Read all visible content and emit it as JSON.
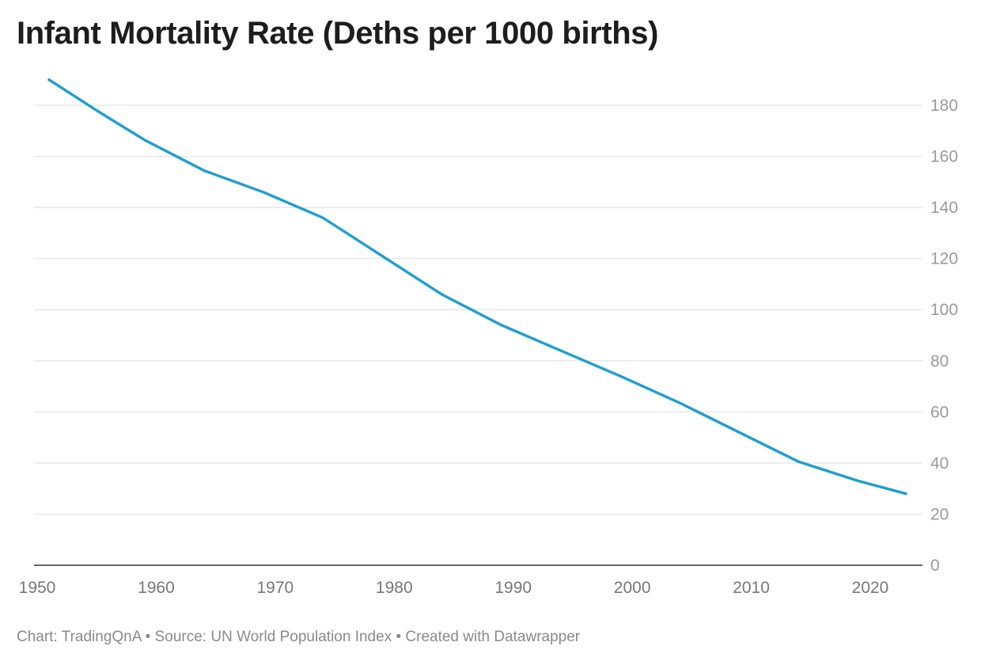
{
  "colors": {
    "line": "#1f9ecf",
    "grid": "#e2e2e2",
    "axis": "#333333",
    "tick_text": "#9a9a9a",
    "title_text": "#1d1d1d"
  },
  "footer": {
    "chart_credit": "Chart: TradingQnA",
    "separator_1": " • ",
    "source": "Source: UN World Population Index",
    "separator_2": " • ",
    "created_with": "Created with Datawrapper"
  },
  "chart_data": {
    "type": "line",
    "title": "Infant Mortality Rate (Deths per 1000 births)",
    "xlabel": "",
    "ylabel": "",
    "xlim": [
      1950,
      2023
    ],
    "ylim": [
      0,
      190
    ],
    "x_ticks": [
      1950,
      1960,
      1970,
      1980,
      1990,
      2000,
      2010,
      2020
    ],
    "y_ticks": [
      0,
      20,
      40,
      60,
      80,
      100,
      120,
      140,
      160,
      180
    ],
    "y_axis_position": "right",
    "grid": true,
    "series": [
      {
        "x": [
          1951,
          1955,
          1959,
          1964,
          1969,
          1974,
          1979,
          1984,
          1989,
          1994,
          1999,
          2004,
          2009,
          2014,
          2019,
          2023
        ],
        "y": [
          190,
          178,
          166.5,
          154.5,
          146,
          136,
          121,
          106,
          94,
          84,
          74,
          63.5,
          52,
          40.5,
          33,
          28
        ]
      }
    ]
  }
}
